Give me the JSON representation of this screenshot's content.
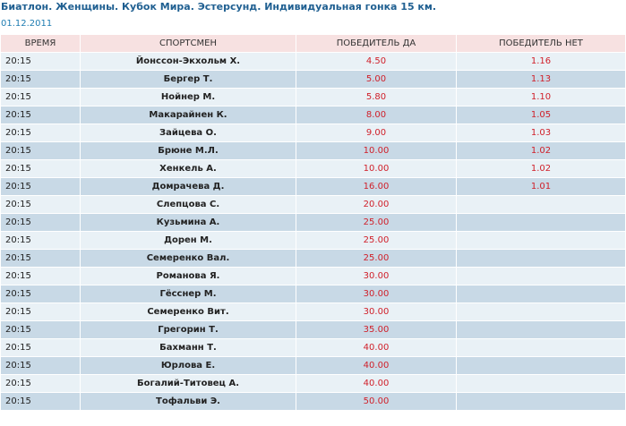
{
  "header": {
    "title": "Биатлон. Женщины. Кубок Мира. Эстерсунд. Индивидуальная гонка 15 км.",
    "date": "01.12.2011"
  },
  "table": {
    "columns": [
      "ВРЕМЯ",
      "СПОРТСМЕН",
      "ПОБЕДИТЕЛЬ ДА",
      "ПОБЕДИТЕЛЬ НЕТ"
    ],
    "rows": [
      {
        "time": "20:15",
        "athlete": "Йонссон-Экхольм Х.",
        "win_yes": "4.50",
        "win_no": "1.16"
      },
      {
        "time": "20:15",
        "athlete": "Бергер Т.",
        "win_yes": "5.00",
        "win_no": "1.13"
      },
      {
        "time": "20:15",
        "athlete": "Нойнер М.",
        "win_yes": "5.80",
        "win_no": "1.10"
      },
      {
        "time": "20:15",
        "athlete": "Макарайнен К.",
        "win_yes": "8.00",
        "win_no": "1.05"
      },
      {
        "time": "20:15",
        "athlete": "Зайцева О.",
        "win_yes": "9.00",
        "win_no": "1.03"
      },
      {
        "time": "20:15",
        "athlete": "Брюне М.Л.",
        "win_yes": "10.00",
        "win_no": "1.02"
      },
      {
        "time": "20:15",
        "athlete": "Хенкель А.",
        "win_yes": "10.00",
        "win_no": "1.02"
      },
      {
        "time": "20:15",
        "athlete": "Домрачева Д.",
        "win_yes": "16.00",
        "win_no": "1.01"
      },
      {
        "time": "20:15",
        "athlete": "Слепцова С.",
        "win_yes": "20.00",
        "win_no": ""
      },
      {
        "time": "20:15",
        "athlete": "Кузьмина А.",
        "win_yes": "25.00",
        "win_no": ""
      },
      {
        "time": "20:15",
        "athlete": "Дорен М.",
        "win_yes": "25.00",
        "win_no": ""
      },
      {
        "time": "20:15",
        "athlete": "Семеренко Вал.",
        "win_yes": "25.00",
        "win_no": ""
      },
      {
        "time": "20:15",
        "athlete": "Романова Я.",
        "win_yes": "30.00",
        "win_no": ""
      },
      {
        "time": "20:15",
        "athlete": "Гёсснер М.",
        "win_yes": "30.00",
        "win_no": ""
      },
      {
        "time": "20:15",
        "athlete": "Семеренко Вит.",
        "win_yes": "30.00",
        "win_no": ""
      },
      {
        "time": "20:15",
        "athlete": "Грегорин Т.",
        "win_yes": "35.00",
        "win_no": ""
      },
      {
        "time": "20:15",
        "athlete": "Бахманн Т.",
        "win_yes": "40.00",
        "win_no": ""
      },
      {
        "time": "20:15",
        "athlete": "Юрлова Е.",
        "win_yes": "40.00",
        "win_no": ""
      },
      {
        "time": "20:15",
        "athlete": "Богалий-Титовец А.",
        "win_yes": "40.00",
        "win_no": ""
      },
      {
        "time": "20:15",
        "athlete": "Тофальви Э.",
        "win_yes": "50.00",
        "win_no": ""
      }
    ]
  },
  "colors": {
    "title": "#1f5f91",
    "date": "#1f7db2",
    "header_bg": "#f7e1e1",
    "row_light": "#e9f1f6",
    "row_dark": "#c8d9e6",
    "odds_text": "#d0202a"
  }
}
